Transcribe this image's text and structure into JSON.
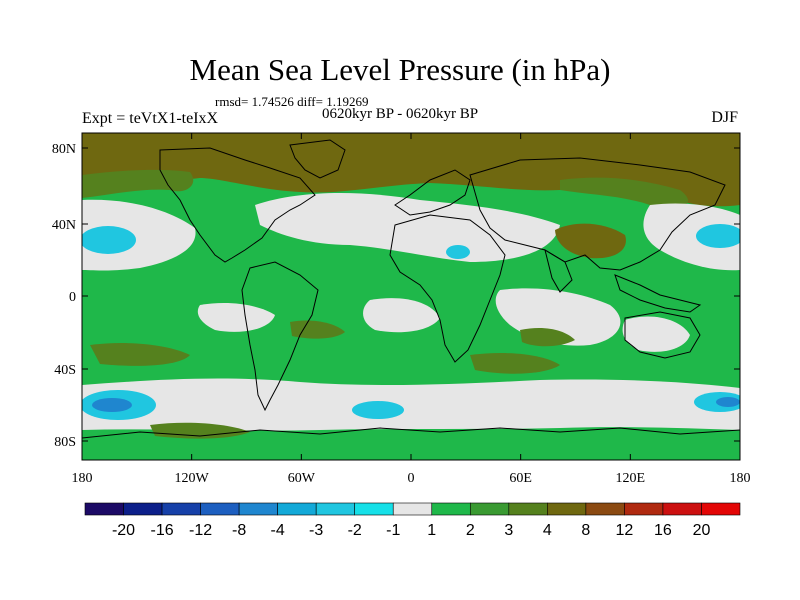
{
  "title": "Mean Sea Level Pressure (in hPa)",
  "stats": "rmsd= 1.74526 diff= 1.19269",
  "experiment": "Expt = teVtX1-teIxX",
  "period": "0620kyr BP - 0620kyr BP",
  "season": "DJF",
  "lat_ticks": [
    "80N",
    "40N",
    "0",
    "40S",
    "80S"
  ],
  "lon_ticks": [
    "180",
    "120W",
    "60W",
    "0",
    "60E",
    "120E",
    "180"
  ],
  "colorbar": {
    "labels": [
      "-20",
      "-16",
      "-12",
      "-8",
      "-4",
      "-3",
      "-2",
      "-1",
      "1",
      "2",
      "3",
      "4",
      "8",
      "12",
      "16",
      "20"
    ],
    "colors": [
      "#1c0a66",
      "#0c1f8a",
      "#1640a8",
      "#1d5fc0",
      "#1f86cf",
      "#13a9d8",
      "#20c6e0",
      "#16e0e8",
      "#e6e6e6",
      "#1fb84a",
      "#3a9a32",
      "#55811e",
      "#6f6810",
      "#8b4a12",
      "#b02a10",
      "#cc1010",
      "#e30606"
    ]
  },
  "legend_colors": {
    "ocean_neutral": "#e6e6e6",
    "coast": "#000000"
  }
}
